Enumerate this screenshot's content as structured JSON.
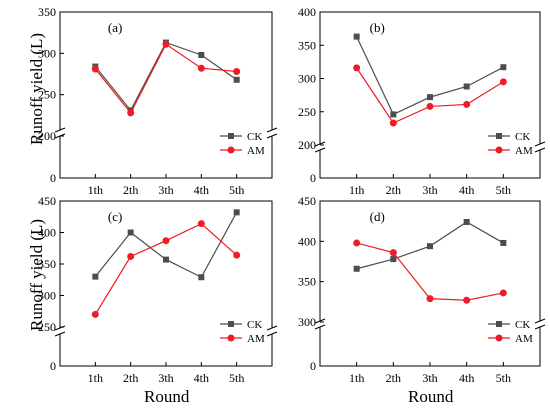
{
  "y_axis_label": "Runoff yield (L)",
  "x_axis_label": "Round",
  "legend_names": [
    "CK",
    "AM"
  ],
  "colors": {
    "CK": "#4d4d4d",
    "AM": "#ee1c24"
  },
  "chart_data": [
    {
      "type": "line",
      "panel_label": "(a)",
      "categories": [
        "1th",
        "2th",
        "3th",
        "4th",
        "5th"
      ],
      "series": [
        {
          "name": "CK",
          "values": [
            284,
            231,
            313,
            298,
            268
          ]
        },
        {
          "name": "AM",
          "values": [
            281,
            228,
            311,
            282,
            278
          ]
        }
      ],
      "ylim": [
        0,
        350
      ],
      "yticks": [
        0,
        200,
        250,
        300,
        350
      ],
      "axis_break": [
        0,
        200
      ],
      "legend_position": "bottom-right"
    },
    {
      "type": "line",
      "panel_label": "(b)",
      "categories": [
        "1th",
        "2th",
        "3th",
        "4th",
        "5th"
      ],
      "series": [
        {
          "name": "CK",
          "values": [
            363,
            246,
            272,
            288,
            317
          ]
        },
        {
          "name": "AM",
          "values": [
            316,
            233,
            258,
            261,
            295
          ]
        }
      ],
      "ylim": [
        0,
        400
      ],
      "yticks": [
        0,
        200,
        250,
        300,
        350,
        400
      ],
      "axis_break": [
        0,
        200
      ],
      "legend_position": "bottom-right"
    },
    {
      "type": "line",
      "panel_label": "(c)",
      "categories": [
        "1th",
        "2th",
        "3th",
        "4th",
        "5th"
      ],
      "series": [
        {
          "name": "CK",
          "values": [
            330,
            400,
            357,
            329,
            432
          ]
        },
        {
          "name": "AM",
          "values": [
            270,
            362,
            387,
            414,
            364
          ]
        }
      ],
      "ylim": [
        0,
        450
      ],
      "yticks": [
        0,
        250,
        300,
        350,
        400,
        450
      ],
      "axis_break": [
        0,
        250
      ],
      "legend_position": "bottom-right"
    },
    {
      "type": "line",
      "panel_label": "(d)",
      "categories": [
        "1th",
        "2th",
        "3th",
        "4th",
        "5th"
      ],
      "series": [
        {
          "name": "CK",
          "values": [
            366,
            378,
            394,
            424,
            398
          ]
        },
        {
          "name": "AM",
          "values": [
            398,
            386,
            329,
            327,
            336
          ]
        }
      ],
      "ylim": [
        0,
        450
      ],
      "yticks": [
        0,
        300,
        350,
        400,
        450
      ],
      "axis_break": [
        0,
        300
      ],
      "legend_position": "bottom-right"
    }
  ]
}
